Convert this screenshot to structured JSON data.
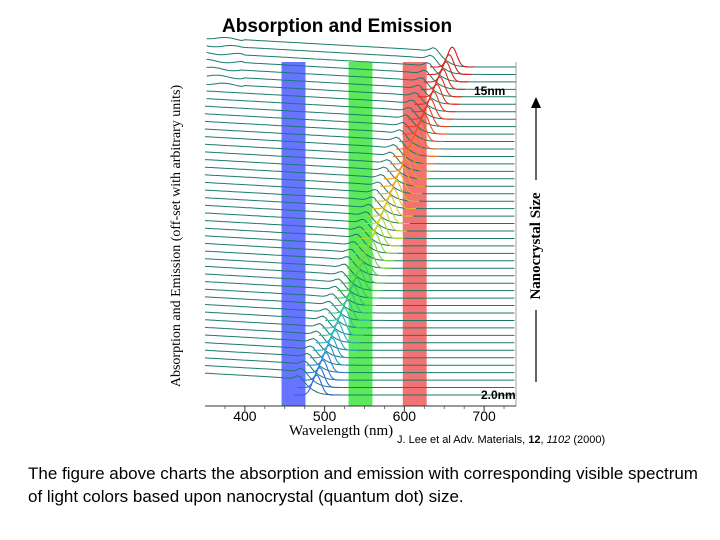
{
  "slide": {
    "title": "Absorption and Emission",
    "caption": "The figure above charts the absorption and emission with corresponding visible spectrum of light colors based upon nanocrystal (quantum dot) size."
  },
  "citation": {
    "authors": "J. Lee et al Adv. Materials, ",
    "volume": "12",
    "sep": ", ",
    "pages": "1102",
    "year": " (2000)"
  },
  "chart_data": {
    "type": "line",
    "title": "Absorption and Emission",
    "xlabel": "Wavelength (nm)",
    "ylabel": "Absorption and Emission (off-set with arbitrary units)",
    "xlim": [
      350,
      740
    ],
    "xticks": [
      400,
      500,
      600,
      700
    ],
    "size_axis_label": "Nanocrystal Size",
    "size_top_label": "15nm",
    "size_bottom_label": "2.0nm",
    "series_count": 45,
    "size_range_nm": [
      2.0,
      15
    ],
    "absorption_onset_nm": [
      480,
      650
    ],
    "emission_peak_nm": [
      490,
      660
    ],
    "highlight_bands": [
      {
        "name": "blue",
        "from_nm": 446,
        "to_nm": 476,
        "color": "#4b5cff"
      },
      {
        "name": "green",
        "from_nm": 530,
        "to_nm": 560,
        "color": "#3fe63f"
      },
      {
        "name": "red",
        "from_nm": 598,
        "to_nm": 628,
        "color": "#f05a5a"
      }
    ],
    "curve_color": "#1a7a6a"
  }
}
